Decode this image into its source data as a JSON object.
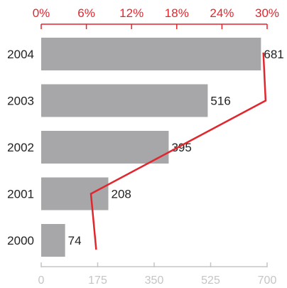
{
  "chart_data": {
    "type": "bar",
    "orientation": "horizontal",
    "categories": [
      "2004",
      "2003",
      "2002",
      "2001",
      "2000"
    ],
    "series": [
      {
        "values": [
          681,
          516,
          395,
          208,
          74
        ],
        "kind": "bar"
      },
      {
        "values": [
          29.5,
          29.8,
          18.2,
          6.6,
          7.3
        ],
        "kind": "line"
      }
    ],
    "x_bottom": {
      "ticks": [
        "0",
        "175",
        "350",
        "525",
        "700"
      ],
      "range": [
        0,
        700
      ]
    },
    "x_top": {
      "ticks": [
        "0%",
        "6%",
        "12%",
        "18%",
        "24%",
        "30%"
      ],
      "range": [
        0,
        30
      ]
    },
    "grid": false,
    "colors": {
      "bar": "#a7a7aa",
      "line": "#e0272d",
      "top_axis": "#e0272d",
      "bottom_axis": "#c5c5c5",
      "text": "#222222"
    }
  }
}
